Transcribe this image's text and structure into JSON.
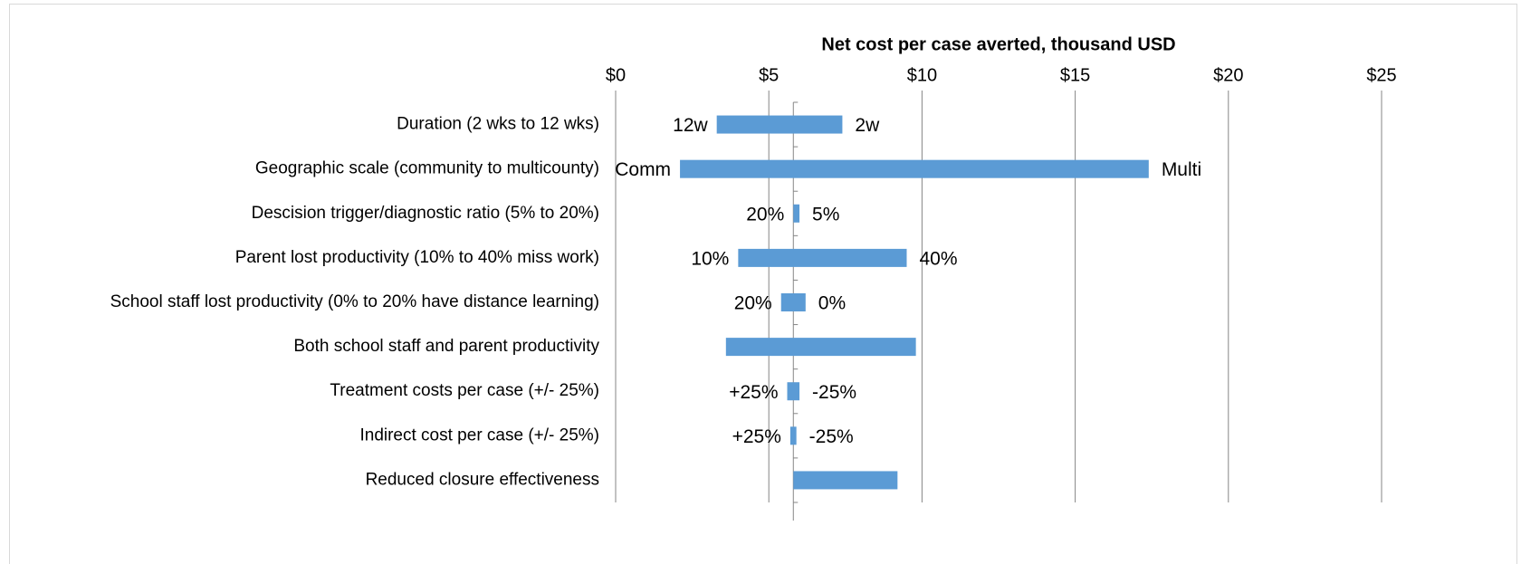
{
  "chart_data": {
    "type": "floating_bar",
    "title": "Net cost per case averted, thousand USD",
    "categories": [
      "Duration (2 wks to 12 wks)",
      "Geographic scale (community to multicounty)",
      "Descision trigger/diagnostic ratio (5% to 20%)",
      "Parent lost productivity (10% to 40% miss work)",
      "School staff lost productivity (0% to 20% have distance learning)",
      "Both school staff and parent productivity",
      "Treatment costs per case (+/- 25%)",
      "Indirect cost per case  (+/- 25%)",
      "Reduced closure effectiveness"
    ],
    "low": [
      3.3,
      2.1,
      5.8,
      4.0,
      5.4,
      3.6,
      5.6,
      5.7,
      5.8
    ],
    "high": [
      7.4,
      17.4,
      6.0,
      9.5,
      6.2,
      9.8,
      6.0,
      5.9,
      9.2
    ],
    "low_labels": [
      "12w",
      "Comm",
      "20%",
      "10%",
      "20%",
      null,
      "+25%",
      "+25%",
      null
    ],
    "high_labels": [
      "2w",
      "Multi",
      "5%",
      "40%",
      "0%",
      null,
      "-25%",
      "-25%",
      null
    ],
    "base": 5.8,
    "color": "#5b9bd5",
    "xlim": [
      0,
      25
    ],
    "xticks": [
      {
        "value": 0,
        "label": "$0"
      },
      {
        "value": 5,
        "label": "$5"
      },
      {
        "value": 10,
        "label": "$10"
      },
      {
        "value": 15,
        "label": "$15"
      },
      {
        "value": 20,
        "label": "$20"
      },
      {
        "value": 25,
        "label": "$25"
      }
    ],
    "grid": true
  }
}
